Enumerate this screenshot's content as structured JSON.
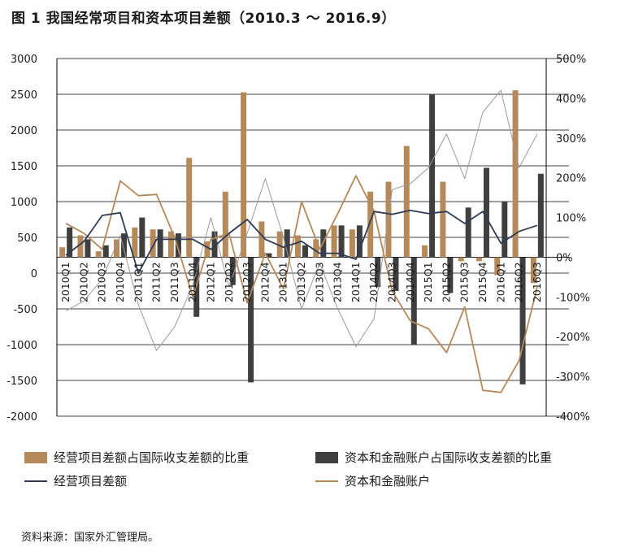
{
  "title": "图 1  我国经常项目和资本项目差额（2010.3 〜 2016.9）",
  "source": "资料来源：国家外汇管理局。",
  "colors": {
    "current_ratio": "#b5895a",
    "capital_ratio": "#3f3f3f",
    "current_balance": "#2e3b55",
    "capital_account": "#b5895a",
    "thin_line": "#9a9a9a",
    "grid": "#000000"
  },
  "chart_data": {
    "type": "bar",
    "categories": [
      "2010Q1",
      "2010Q2",
      "2010Q3",
      "2010Q4",
      "2011Q1",
      "2011Q2",
      "2011Q3",
      "2011Q4",
      "2012Q1",
      "2012Q2",
      "2012Q3",
      "2012Q4",
      "2013Q1",
      "2013Q2",
      "2013Q3",
      "2013Q4",
      "2014Q1",
      "2014Q2",
      "2014Q3",
      "2014Q4",
      "2015Q1",
      "2015Q2",
      "2015Q3",
      "2015Q4",
      "2016Q1",
      "2016Q2",
      "2016Q3"
    ],
    "left_axis": {
      "range": [
        -2000,
        3000
      ],
      "ticks": [
        "3000",
        "2500",
        "2000",
        "1500",
        "1000",
        "500",
        "0",
        "-500",
        "-1000",
        "-1500",
        "-2000"
      ]
    },
    "right_axis": {
      "range": [
        -400,
        500
      ],
      "ticks": [
        "500%",
        "400%",
        "300%",
        "200%",
        "100%",
        "0%",
        "-100%",
        "-200%",
        "-300%",
        "-400%"
      ]
    },
    "grid": "horizontal",
    "legend": [
      {
        "label": "经营项目差额占国际收支差额的比重",
        "kind": "bar",
        "color_key": "current_ratio"
      },
      {
        "label": "资本和金融账户占国际收支差额的比重",
        "kind": "bar",
        "color_key": "capital_ratio"
      },
      {
        "label": "经营项目差额",
        "kind": "line",
        "color_key": "current_balance"
      },
      {
        "label": "资本和金融账户",
        "kind": "line",
        "color_key": "capital_account"
      }
    ],
    "series": [
      {
        "name": "经营项目差额占国际收支差额的比重",
        "axis": "right",
        "kind": "bar",
        "values": [
          25,
          55,
          15,
          45,
          75,
          70,
          65,
          250,
          40,
          165,
          415,
          90,
          65,
          55,
          45,
          80,
          70,
          165,
          190,
          280,
          30,
          190,
          -10,
          -10,
          -45,
          420,
          -65
        ]
      },
      {
        "name": "资本和金融账户占国际收支差额的比重",
        "axis": "right",
        "kind": "bar",
        "values": [
          75,
          45,
          30,
          60,
          100,
          70,
          60,
          -150,
          65,
          -70,
          -315,
          10,
          70,
          30,
          70,
          80,
          80,
          -75,
          -85,
          -220,
          410,
          -90,
          125,
          225,
          140,
          -320,
          210
        ]
      },
      {
        "name": "经营项目差额",
        "axis": "right",
        "kind": "line",
        "values": [
          5,
          40,
          105,
          112,
          -40,
          45,
          45,
          45,
          20,
          60,
          95,
          45,
          25,
          40,
          10,
          10,
          -5,
          115,
          108,
          118,
          110,
          115,
          85,
          115,
          35,
          65,
          80
        ]
      },
      {
        "name": "资本和金融账户",
        "axis": "right",
        "kind": "line",
        "values": [
          85,
          60,
          20,
          192,
          155,
          158,
          50,
          -100,
          45,
          60,
          -115,
          10,
          -80,
          140,
          20,
          110,
          205,
          115,
          -85,
          -160,
          -180,
          -240,
          -125,
          -335,
          -340,
          -260,
          -75
        ]
      },
      {
        "name": "",
        "axis": "right",
        "kind": "line",
        "values": [
          -135,
          -110,
          -55,
          55,
          -120,
          -235,
          -175,
          -70,
          100,
          -75,
          60,
          198,
          50,
          -130,
          -15,
          -130,
          -225,
          -155,
          170,
          185,
          225,
          310,
          198,
          365,
          420,
          225,
          310
        ]
      }
    ]
  }
}
